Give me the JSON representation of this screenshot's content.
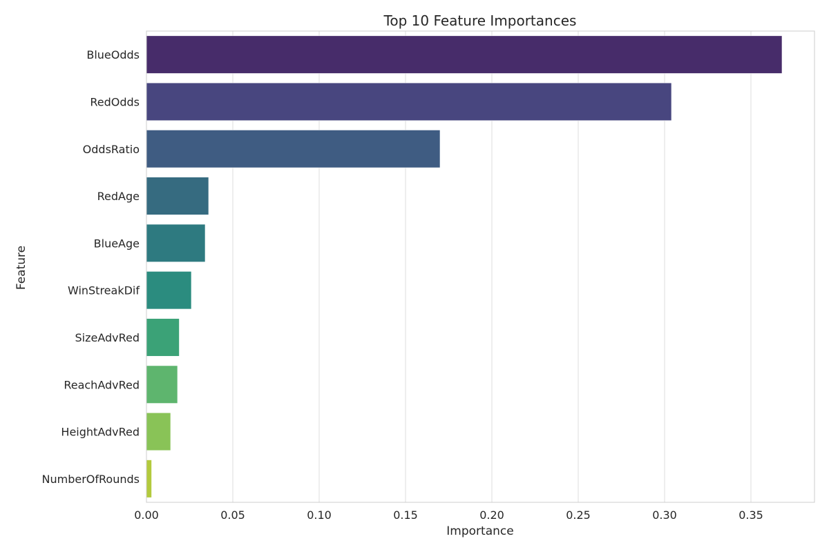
{
  "chart_data": {
    "type": "bar",
    "orientation": "horizontal",
    "title": "Top 10 Feature Importances",
    "xlabel": "Importance",
    "ylabel": "Feature",
    "xlim": [
      0.0,
      0.3868
    ],
    "xticks": [
      "0.00",
      "0.05",
      "0.10",
      "0.15",
      "0.20",
      "0.25",
      "0.30",
      "0.35"
    ],
    "grid": "vertical",
    "categories": [
      "BlueOdds",
      "RedOdds",
      "OddsRatio",
      "RedAge",
      "BlueAge",
      "WinStreakDif",
      "SizeAdvRed",
      "ReachAdvRed",
      "HeightAdvRed",
      "NumberOfRounds"
    ],
    "values": [
      0.368,
      0.304,
      0.17,
      0.036,
      0.034,
      0.026,
      0.019,
      0.018,
      0.014,
      0.003
    ],
    "colors": [
      "#472C6A",
      "#48467F",
      "#3F5C82",
      "#366B80",
      "#2E7A80",
      "#2B8C7F",
      "#3BA277",
      "#5EB56E",
      "#89C357",
      "#B3CA3D"
    ]
  }
}
